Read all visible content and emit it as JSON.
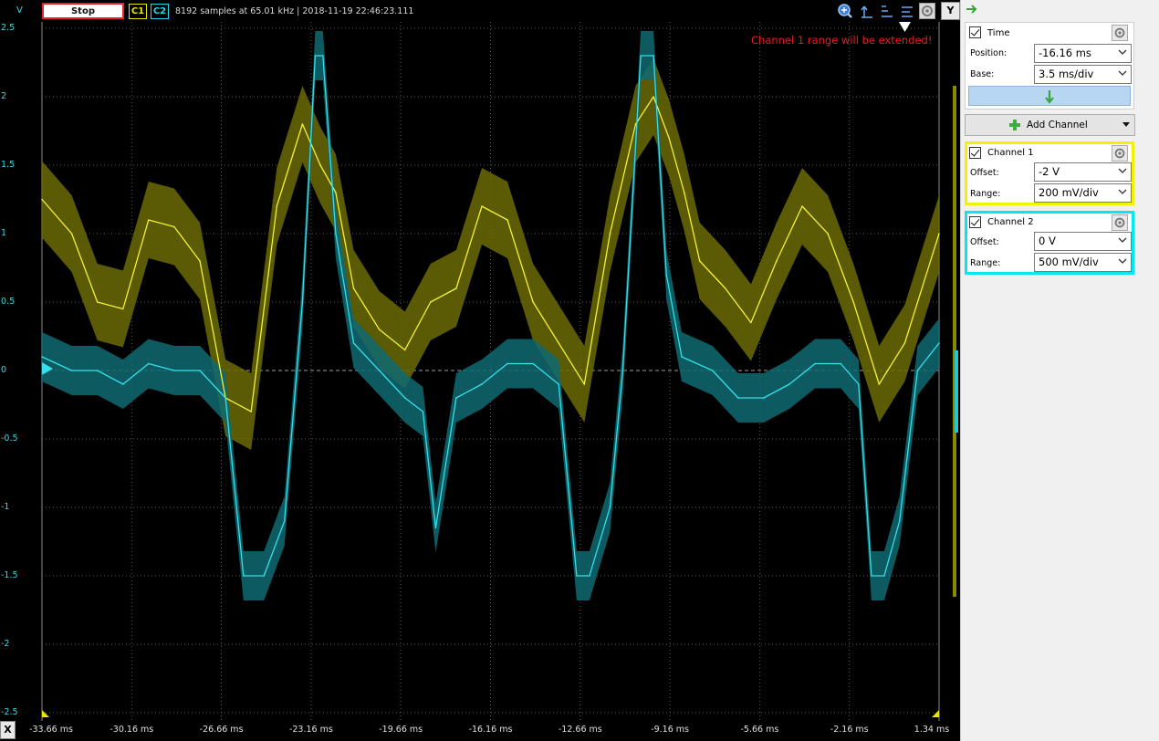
{
  "toolbar": {
    "y_unit": "V",
    "stop_label": "Stop",
    "c1_label": "C1",
    "c2_label": "C2",
    "status": "8192 samples at 65.01 kHz | 2018-11-19 22:46:23.111",
    "y_button": "Y",
    "icons": [
      "zoom-icon",
      "cursor-icon",
      "baseline-icon",
      "overlay-icon",
      "settings-icon"
    ]
  },
  "plot": {
    "warning": "Channel 1 range will be extended!",
    "y_ticks": [
      "2.5",
      "2",
      "1.5",
      "1",
      "0.5",
      "0",
      "-0.5",
      "-1",
      "-1.5",
      "-2",
      "-2.5"
    ],
    "x_ticks": [
      "-33.66 ms",
      "-30.16 ms",
      "-26.66 ms",
      "-23.16 ms",
      "-19.66 ms",
      "-16.16 ms",
      "-12.66 ms",
      "-9.16 ms",
      "-5.66 ms",
      "-2.16 ms",
      "1.34 ms"
    ],
    "x_button": "X",
    "colors": {
      "ch1": "#f2f23a",
      "ch2": "#34e0ec",
      "ch1_band": "#6b6a06",
      "ch2_band": "#0f6a72",
      "grid": "#5a5a5a"
    }
  },
  "sidebar": {
    "time": {
      "title": "Time",
      "position_label": "Position:",
      "position_value": "-16.16 ms",
      "base_label": "Base:",
      "base_value": "3.5 ms/div"
    },
    "add_channel": "Add Channel",
    "channel1": {
      "title": "Channel 1",
      "offset_label": "Offset:",
      "offset_value": "-2 V",
      "range_label": "Range:",
      "range_value": "200 mV/div",
      "color": "#f2f200"
    },
    "channel2": {
      "title": "Channel 2",
      "offset_label": "Offset:",
      "offset_value": "0 V",
      "range_label": "Range:",
      "range_value": "500 mV/div",
      "color": "#00e8f0"
    }
  },
  "chart_data": {
    "type": "line",
    "xlabel": "",
    "ylabel": "V",
    "xlim": [
      -33.66,
      1.34
    ],
    "ylim": [
      -2.5,
      2.5
    ],
    "grid": true,
    "series": [
      {
        "name": "C1",
        "x": [
          -33.66,
          -32.5,
          -31.5,
          -30.5,
          -29.5,
          -28.5,
          -27.5,
          -26.5,
          -25.5,
          -24.5,
          -23.5,
          -22.8,
          -22.2,
          -21.5,
          -20.5,
          -19.5,
          -18.5,
          -17.5,
          -16.5,
          -15.5,
          -14.5,
          -13.5,
          -12.5,
          -11.5,
          -10.5,
          -9.8,
          -9.2,
          -8.6,
          -8.0,
          -7.0,
          -6.0,
          -5.0,
          -4.0,
          -3.0,
          -2.0,
          -1.0,
          0.0,
          1.34
        ],
        "y": [
          1.25,
          1.0,
          0.5,
          0.45,
          1.1,
          1.05,
          0.8,
          -0.2,
          -0.3,
          1.2,
          1.8,
          1.5,
          1.3,
          0.6,
          0.3,
          0.15,
          0.5,
          0.6,
          1.2,
          1.1,
          0.5,
          0.2,
          -0.1,
          1.0,
          1.8,
          2.0,
          1.7,
          1.3,
          0.8,
          0.6,
          0.35,
          0.8,
          1.2,
          1.0,
          0.5,
          -0.1,
          0.2,
          1.0
        ]
      },
      {
        "name": "C2",
        "x": [
          -33.66,
          -32.5,
          -31.5,
          -30.5,
          -29.5,
          -28.5,
          -27.5,
          -26.5,
          -25.8,
          -25.0,
          -24.2,
          -23.5,
          -23.0,
          -22.7,
          -22.2,
          -21.5,
          -20.5,
          -19.5,
          -18.8,
          -18.3,
          -17.5,
          -16.5,
          -15.5,
          -14.5,
          -13.5,
          -12.8,
          -12.3,
          -11.5,
          -11.0,
          -10.3,
          -9.8,
          -9.3,
          -8.7,
          -7.5,
          -6.5,
          -5.5,
          -4.5,
          -3.5,
          -2.5,
          -1.8,
          -1.3,
          -0.8,
          -0.2,
          0.5,
          1.34
        ],
        "y": [
          0.1,
          0.0,
          0.0,
          -0.1,
          0.05,
          0.0,
          0.0,
          -0.2,
          -1.5,
          -1.5,
          -1.1,
          0.5,
          2.3,
          2.3,
          1.0,
          0.2,
          0.0,
          -0.2,
          -0.3,
          -1.15,
          -0.2,
          -0.1,
          0.05,
          0.05,
          -0.1,
          -1.5,
          -1.5,
          -1.0,
          0.0,
          2.3,
          2.3,
          0.7,
          0.1,
          0.0,
          -0.2,
          -0.2,
          -0.1,
          0.05,
          0.05,
          -0.1,
          -1.5,
          -1.5,
          -1.1,
          0.0,
          0.2
        ]
      }
    ]
  }
}
